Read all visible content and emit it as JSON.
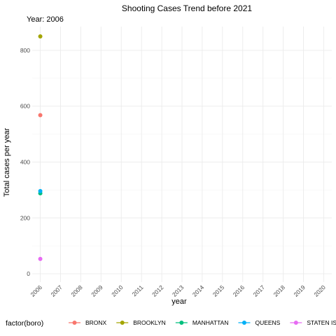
{
  "chart_data": {
    "type": "scatter",
    "title": "Shooting Cases Trend before 2021",
    "subtitle": "Year: 2006",
    "xlabel": "year",
    "ylabel": "Total cases per year",
    "x_ticks": [
      "2006",
      "2007",
      "2008",
      "2009",
      "2010",
      "2011",
      "2012",
      "2013",
      "2014",
      "2015",
      "2016",
      "2017",
      "2018",
      "2019",
      "2020"
    ],
    "y_ticks": [
      0,
      200,
      400,
      600,
      800
    ],
    "xlim": [
      2005.6,
      2020.4
    ],
    "ylim": [
      -30,
      885
    ],
    "grid": true,
    "legend": {
      "title": "factor(boro)",
      "position": "bottom"
    },
    "series": [
      {
        "name": "BRONX",
        "color": "#F8766D",
        "points": [
          {
            "x": 2006,
            "y": 568
          }
        ]
      },
      {
        "name": "BROOKLYN",
        "color": "#A3A500",
        "points": [
          {
            "x": 2006,
            "y": 850
          }
        ]
      },
      {
        "name": "MANHATTAN",
        "color": "#00BF7D",
        "points": [
          {
            "x": 2006,
            "y": 288
          }
        ]
      },
      {
        "name": "QUEENS",
        "color": "#00B0F6",
        "points": [
          {
            "x": 2006,
            "y": 296
          }
        ]
      },
      {
        "name": "STATEN ISLAND",
        "color": "#E76BF3",
        "points": [
          {
            "x": 2006,
            "y": 53
          }
        ]
      }
    ]
  }
}
